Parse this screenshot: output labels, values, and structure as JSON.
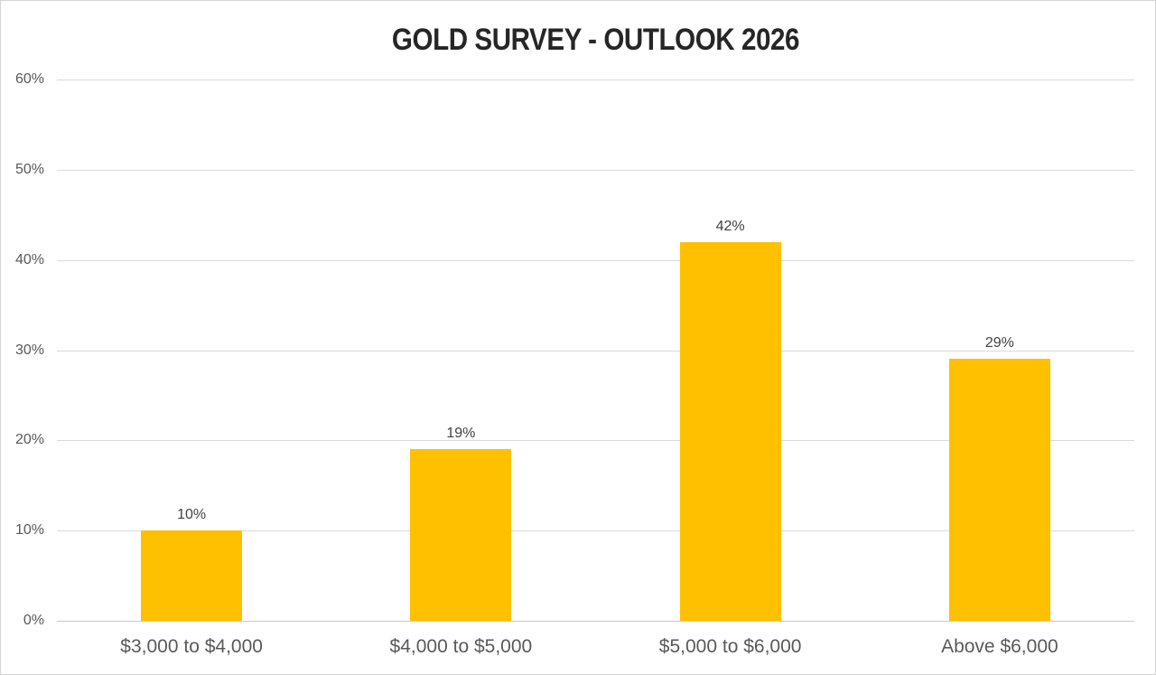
{
  "chart_data": {
    "type": "bar",
    "title": "GOLD SURVEY - OUTLOOK 2026",
    "categories": [
      "$3,000 to $4,000",
      "$4,000 to $5,000",
      "$5,000 to $6,000",
      "Above $6,000"
    ],
    "values": [
      10,
      19,
      42,
      29
    ],
    "data_labels": [
      "10%",
      "19%",
      "42%",
      "29%"
    ],
    "y_ticks": [
      "0%",
      "10%",
      "20%",
      "30%",
      "40%",
      "50%",
      "60%"
    ],
    "y_tick_values": [
      0,
      10,
      20,
      30,
      40,
      50,
      60
    ],
    "ylim": [
      0,
      60
    ],
    "xlabel": "",
    "ylabel": "",
    "grid": true,
    "legend": "none",
    "colors": {
      "bar": "#FFC000",
      "title_text": "#262626",
      "axis_label_text": "#595959",
      "data_label_text": "#404040",
      "gridline": "#D9D9D9",
      "axis_line": "#C8C8C8",
      "frame_border": "#D6D6D6",
      "background": "#FFFFFF"
    }
  }
}
